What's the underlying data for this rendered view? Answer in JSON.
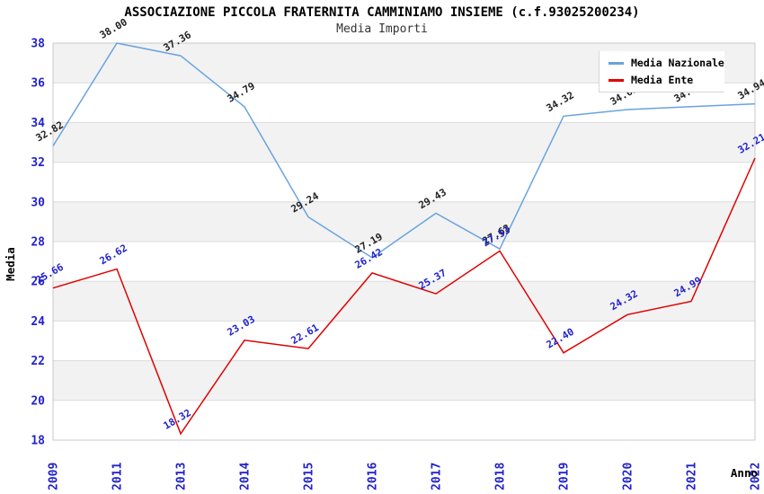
{
  "header": {
    "title": "ASSOCIAZIONE PICCOLA FRATERNITA CAMMINIAMO INSIEME (c.f.93025200234)",
    "subtitle": "Media Importi"
  },
  "legend": {
    "items": [
      {
        "label": "Media Nazionale",
        "color": "#69A3E0"
      },
      {
        "label": "Media Ente",
        "color": "#E00000"
      }
    ]
  },
  "axes": {
    "y_title": "Media",
    "x_title": "Anno",
    "y_ticks": [
      38,
      36,
      34,
      32,
      30,
      28,
      26,
      24,
      22,
      20,
      18
    ],
    "tick_label_color": "#2222CC",
    "axis_title_color": "#000000"
  },
  "colors": {
    "band_gray": "#F2F2F2",
    "band_white": "#FFFFFF",
    "gridline": "#DCDCDC",
    "frame": "#C8C8C8",
    "nazionale_line": "#69A3E0",
    "nazionale_label": "#222222",
    "ente_line": "#E00000",
    "ente_label": "#2222CC"
  },
  "chart_data": {
    "type": "line",
    "title": "ASSOCIAZIONE PICCOLA FRATERNITA CAMMINIAMO INSIEME (c.f.93025200234)",
    "subtitle": "Media Importi",
    "xlabel": "Anno",
    "ylabel": "Media",
    "ylim": [
      18,
      38
    ],
    "y_step": 2,
    "grid": true,
    "legend_position": "top-right",
    "categories": [
      "2009",
      "2011",
      "2013",
      "2014",
      "2015",
      "2016",
      "2017",
      "2018",
      "2019",
      "2020",
      "2021",
      "2022"
    ],
    "series": [
      {
        "name": "Media Nazionale",
        "color": "#69A3E0",
        "label_color": "#222222",
        "values": [
          32.82,
          38.0,
          37.36,
          34.79,
          29.24,
          27.19,
          29.43,
          27.63,
          34.32,
          34.65,
          34.8,
          34.94
        ]
      },
      {
        "name": "Media Ente",
        "color": "#E00000",
        "label_color": "#2222CC",
        "values": [
          25.66,
          26.62,
          18.32,
          23.03,
          22.61,
          26.42,
          25.37,
          27.53,
          22.4,
          24.32,
          24.99,
          32.21
        ]
      }
    ]
  }
}
